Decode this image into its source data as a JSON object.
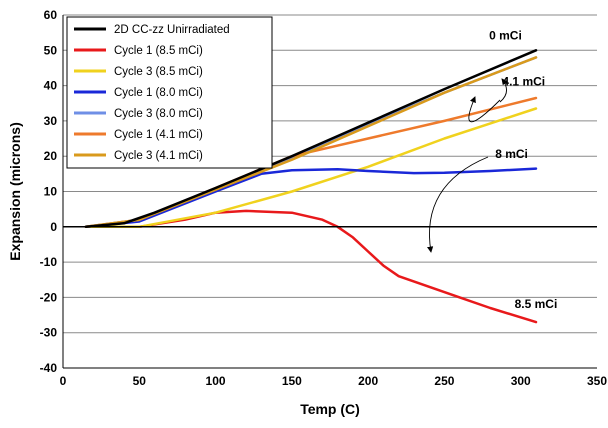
{
  "chart_data": {
    "type": "line",
    "title": "",
    "xlabel": "Temp (C)",
    "ylabel": "Expansion (microns)",
    "xlim": [
      0,
      350
    ],
    "ylim": [
      -40,
      60
    ],
    "xticks": [
      0,
      50,
      100,
      150,
      200,
      250,
      300,
      350
    ],
    "yticks": [
      -40,
      -30,
      -20,
      -10,
      0,
      10,
      20,
      30,
      40,
      50,
      60
    ],
    "grid": "horizontal",
    "legend_position": "top-left",
    "series": [
      {
        "name": "2D CC-zz Unirradiated",
        "color": "#000000",
        "x": [
          15,
          40,
          60,
          100,
          150,
          200,
          250,
          310
        ],
        "y": [
          0,
          1,
          4,
          11,
          20,
          29.5,
          39,
          50
        ]
      },
      {
        "name": "Cycle 1 (8.5 mCi)",
        "color": "#e8191b",
        "x": [
          15,
          50,
          80,
          100,
          120,
          150,
          170,
          180,
          190,
          200,
          210,
          220,
          240,
          260,
          280,
          310
        ],
        "y": [
          0,
          0,
          2,
          4,
          4.5,
          4,
          2,
          0,
          -3,
          -7,
          -11,
          -14,
          -17,
          -20,
          -23,
          -27
        ]
      },
      {
        "name": "Cycle 3 (8.5 mCi)",
        "color": "#f0d21e",
        "x": [
          15,
          50,
          100,
          150,
          200,
          250,
          310
        ],
        "y": [
          0,
          0,
          4,
          10,
          17,
          25,
          33.5
        ]
      },
      {
        "name": "Cycle 1 (8.0 mCi)",
        "color": "#1a28d8",
        "x": [
          15,
          50,
          100,
          130,
          150,
          180,
          200,
          230,
          250,
          280,
          310
        ],
        "y": [
          0,
          1.5,
          10,
          15,
          16,
          16.3,
          15.8,
          15.2,
          15.3,
          15.8,
          16.5
        ]
      },
      {
        "name": "Cycle 3 (8.0 mCi)",
        "color": "#6f8fe6",
        "x": [
          15,
          50,
          100,
          150,
          200,
          250,
          310
        ],
        "y": [
          0,
          2,
          11,
          19.5,
          29,
          38,
          48
        ]
      },
      {
        "name": "Cycle 1 (4.1 mCi)",
        "color": "#ee7a2c",
        "x": [
          15,
          50,
          100,
          150,
          200,
          250,
          310
        ],
        "y": [
          0,
          2,
          11,
          20,
          25,
          30,
          36.5
        ]
      },
      {
        "name": "Cycle 3 (4.1 mCi)",
        "color": "#d99a1c",
        "x": [
          15,
          50,
          100,
          150,
          200,
          250,
          310
        ],
        "y": [
          0,
          2,
          10.5,
          19,
          28.5,
          38,
          48
        ]
      }
    ],
    "annotations": [
      {
        "text": "0 mCi",
        "x": 290,
        "y": 53
      },
      {
        "text": "4.1 mCi",
        "x": 302,
        "y": 40
      },
      {
        "text": "8 mCi",
        "x": 294,
        "y": 19.5
      },
      {
        "text": "8.5 mCi",
        "x": 310,
        "y": -23
      }
    ]
  }
}
